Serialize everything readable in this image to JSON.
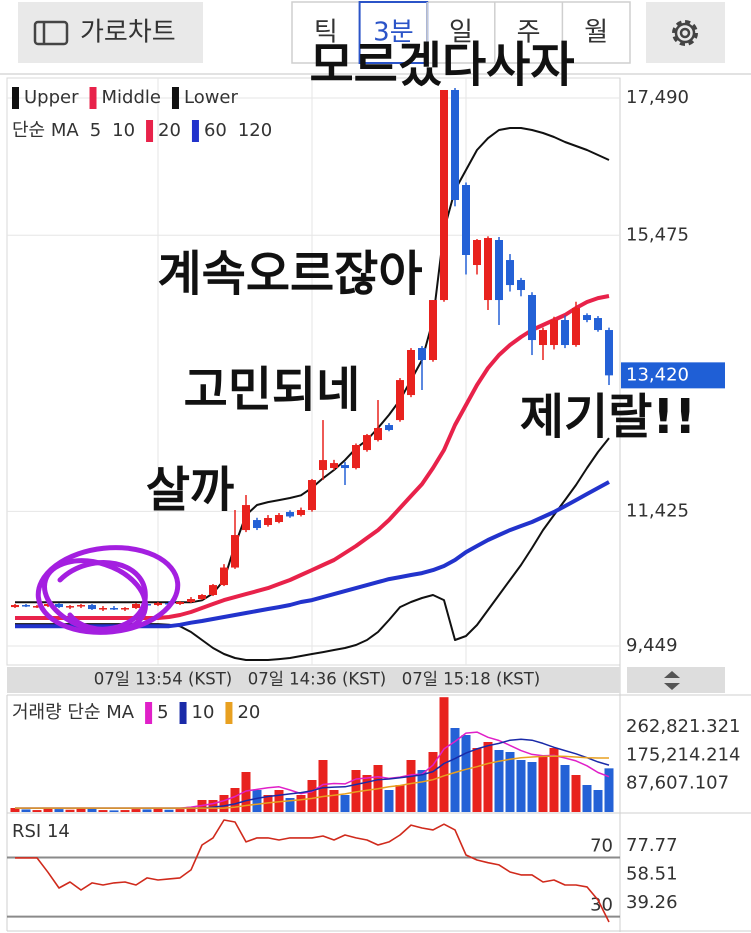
{
  "toolbar": {
    "chart_mode_button": "가로차트",
    "timeframes": [
      "틱",
      "3분",
      "일",
      "주",
      "월"
    ],
    "selected_timeframe": 1
  },
  "chart_data": [
    {
      "type": "candlestick",
      "annotations": [
        "모르겠다사자",
        "계속오르잖아",
        "고민되네",
        "살까",
        "제기랄!!"
      ],
      "categories": [
        null,
        null,
        null,
        null,
        null,
        null,
        null,
        null,
        null,
        null,
        null,
        null,
        null,
        "07일 13:54 (KST)",
        null,
        null,
        null,
        null,
        null,
        null,
        null,
        null,
        null,
        null,
        null,
        null,
        null,
        "07일 14:36 (KST)",
        null,
        null,
        null,
        null,
        null,
        null,
        null,
        null,
        null,
        null,
        null,
        null,
        null,
        "07일 15:18 (KST)",
        null,
        null,
        null,
        null,
        null,
        null,
        null,
        null,
        null,
        null,
        null,
        null,
        null
      ],
      "open": [
        10020,
        10050,
        10035,
        10035,
        10065,
        10020,
        10035,
        10050,
        9991,
        10006,
        9991,
        10006,
        10065,
        10050,
        10080,
        10065,
        10094,
        10138,
        10197,
        10343,
        10600,
        11150,
        11297,
        11224,
        11268,
        11415,
        11371,
        11444,
        12031,
        12060,
        12104,
        12060,
        12324,
        12471,
        12691,
        12764,
        13131,
        13821,
        13645,
        14525,
        17607,
        16213,
        15039,
        14525,
        15406,
        15112,
        14819,
        14599,
        13865,
        13865,
        14232,
        13865,
        14305,
        14261,
        14085
      ],
      "high": [
        10065,
        10065,
        10050,
        10080,
        10080,
        10050,
        10065,
        10065,
        10035,
        10035,
        10020,
        10080,
        10094,
        10094,
        10109,
        10109,
        10167,
        10211,
        10358,
        10650,
        11444,
        11664,
        11330,
        11370,
        11400,
        11440,
        11480,
        11900,
        12764,
        12180,
        12150,
        12420,
        12560,
        13058,
        12720,
        13380,
        13820,
        13850,
        14525,
        17607,
        17636,
        16250,
        15420,
        15460,
        15450,
        15200,
        14850,
        14640,
        14120,
        14280,
        14300,
        14500,
        14330,
        14290,
        14120
      ],
      "low": [
        10006,
        10020,
        10006,
        10020,
        10006,
        9991,
        10006,
        9977,
        9962,
        9977,
        9962,
        9991,
        10035,
        10035,
        10050,
        10050,
        10080,
        10123,
        10182,
        10328,
        10580,
        11120,
        11150,
        11200,
        11250,
        11330,
        11350,
        11420,
        11884,
        12030,
        11811,
        12040,
        12300,
        12450,
        12600,
        12740,
        13100,
        13205,
        13620,
        14500,
        15900,
        14900,
        14900,
        14379,
        14159,
        14650,
        14580,
        13718,
        13645,
        13800,
        13820,
        13840,
        14200,
        14060,
        13278
      ],
      "close": [
        10050,
        10035,
        10035,
        10065,
        10020,
        10035,
        10050,
        9991,
        10006,
        9991,
        10006,
        10065,
        10050,
        10080,
        10065,
        10094,
        10138,
        10197,
        10343,
        10600,
        11077,
        11517,
        11180,
        11327,
        11371,
        11350,
        11444,
        11884,
        12177,
        12133,
        12060,
        12398,
        12544,
        12647,
        12618,
        13351,
        13792,
        13645,
        14525,
        17607,
        15993,
        15186,
        15406,
        15435,
        14525,
        14745,
        14672,
        13938,
        14085,
        14232,
        13865,
        14408,
        14232,
        14085,
        13420
      ],
      "up_color": "#e8221e",
      "down_color": "#2461d6",
      "series": [
        {
          "name": "Upper",
          "color": "#111111",
          "values": [
            10090,
            10090,
            10090,
            10090,
            10090,
            10090,
            10090,
            10090,
            10090,
            10090,
            10090,
            10090,
            10090,
            10090,
            10090,
            10090,
            10090,
            10120,
            10220,
            10417,
            10930,
            11370,
            11517,
            11560,
            11590,
            11620,
            11660,
            11770,
            11910,
            12031,
            12177,
            12350,
            12471,
            12647,
            12840,
            13058,
            13351,
            13645,
            14232,
            15553,
            16140,
            16433,
            16726,
            16900,
            17020,
            17050,
            17050,
            17020,
            16976,
            16917,
            16844,
            16785,
            16726,
            16653,
            16580
          ]
        },
        {
          "name": "Middle",
          "color": "#e8224a",
          "values": [
            9860,
            9860,
            9860,
            9860,
            9860,
            9860,
            9860,
            9860,
            9860,
            9860,
            9860,
            9860,
            9860,
            9860,
            9874,
            9903,
            9947,
            10006,
            10065,
            10123,
            10167,
            10211,
            10255,
            10299,
            10358,
            10417,
            10490,
            10563,
            10637,
            10710,
            10813,
            10916,
            11033,
            11150,
            11297,
            11473,
            11650,
            11825,
            12060,
            12324,
            12691,
            12985,
            13278,
            13528,
            13718,
            13865,
            13982,
            14085,
            14159,
            14232,
            14305,
            14408,
            14496,
            14554,
            14584
          ]
        },
        {
          "name": "Lower",
          "color": "#111111",
          "values": [
            9770,
            9770,
            9770,
            9770,
            9770,
            9770,
            9770,
            9770,
            9770,
            9770,
            9770,
            9770,
            9770,
            9770,
            9760,
            9740,
            9654,
            9537,
            9419,
            9331,
            9272,
            9243,
            9243,
            9243,
            9257,
            9272,
            9302,
            9331,
            9360,
            9390,
            9419,
            9463,
            9537,
            9654,
            9830,
            10020,
            10094,
            10153,
            10197,
            10123,
            9537,
            9596,
            9757,
            9977,
            10197,
            10417,
            10637,
            10886,
            11150,
            11371,
            11590,
            11811,
            12060,
            12295,
            12500
          ]
        }
      ],
      "ma_title": "단순 MA",
      "ma": [
        {
          "period": 5
        },
        {
          "period": 10
        },
        {
          "period": 20,
          "color": "#e8224a"
        },
        {
          "period": 60,
          "color": "#2233cc",
          "values": [
            9740,
            9740,
            9740,
            9740,
            9740,
            9740,
            9740,
            9740,
            9740,
            9740,
            9740,
            9740,
            9740,
            9740,
            9740,
            9760,
            9790,
            9815,
            9845,
            9874,
            9903,
            9933,
            9962,
            9991,
            10020,
            10050,
            10094,
            10123,
            10167,
            10211,
            10255,
            10299,
            10343,
            10387,
            10431,
            10460,
            10490,
            10519,
            10563,
            10622,
            10710,
            10827,
            10916,
            11004,
            11077,
            11150,
            11209,
            11268,
            11341,
            11415,
            11502,
            11590,
            11679,
            11767,
            11855
          ]
        },
        {
          "period": 120
        }
      ],
      "ylim": [
        9170,
        17783
      ],
      "yticks": [
        {
          "value": 17490,
          "label": "17,490"
        },
        {
          "value": 15475,
          "label": "15,475"
        },
        {
          "value": 11425,
          "label": "11,425"
        },
        {
          "value": 9449,
          "label": "9,449"
        }
      ],
      "current_price": {
        "value": 13420,
        "label": "13,420"
      },
      "grid": true
    },
    {
      "type": "bar",
      "title": "거래량 단순 MA",
      "values": [
        12368,
        8000,
        6000,
        10000,
        9000,
        7000,
        12000,
        11000,
        6000,
        5000,
        6000,
        9000,
        8000,
        12000,
        7000,
        9000,
        16000,
        37104,
        37104,
        52564,
        74208,
        123680,
        68024,
        52564,
        68024,
        43288,
        52564,
        98944,
        160784,
        68024,
        52564,
        129864,
        114404,
        145324,
        68024,
        83484,
        160784,
        129864,
        185520,
        355000,
        259728,
        238084,
        197888,
        216440,
        191704,
        185520,
        160784,
        154600,
        176244,
        197888,
        145324,
        114404,
        83484,
        68024,
        135000
      ],
      "ma": [
        {
          "period": 5,
          "color": "#e020c8",
          "values": [
            12000,
            12000,
            12000,
            12000,
            12000,
            12000,
            12000,
            12000,
            12000,
            12000,
            12000,
            12000,
            12000,
            12000,
            12000,
            12000,
            15000,
            20000,
            26000,
            35000,
            48000,
            65000,
            70000,
            75000,
            78000,
            68000,
            57000,
            63000,
            85000,
            88000,
            87000,
            102000,
            105000,
            109000,
            104000,
            108000,
            115000,
            117000,
            145000,
            195000,
            218000,
            244000,
            247000,
            231000,
            221000,
            206000,
            190000,
            178000,
            174000,
            175000,
            167000,
            158000,
            143000,
            122000,
            109000
          ]
        },
        {
          "period": 10,
          "color": "#1a2aa8",
          "values": [
            12000,
            12000,
            12000,
            12000,
            12000,
            12000,
            12000,
            12000,
            12000,
            12000,
            12000,
            12000,
            12000,
            12000,
            12000,
            12000,
            12000,
            12000,
            15000,
            19000,
            25000,
            35000,
            42000,
            48000,
            52000,
            56000,
            60000,
            66000,
            75000,
            77000,
            78000,
            85000,
            92000,
            100000,
            102000,
            106000,
            110000,
            115000,
            125000,
            150000,
            165000,
            182000,
            195000,
            205000,
            212000,
            222000,
            225000,
            222000,
            212000,
            200000,
            190000,
            180000,
            168000,
            155000,
            145000
          ]
        },
        {
          "period": 20,
          "color": "#e8a020",
          "values": [
            12000,
            12000,
            12000,
            12000,
            12000,
            12000,
            12000,
            12000,
            12000,
            12000,
            12000,
            12000,
            12000,
            12000,
            12000,
            12000,
            12000,
            12000,
            12000,
            12000,
            15000,
            20000,
            24000,
            28000,
            32000,
            35000,
            38000,
            42000,
            48000,
            52000,
            56000,
            62000,
            67000,
            72000,
            78000,
            82000,
            88000,
            93000,
            100000,
            112000,
            122000,
            132000,
            140000,
            150000,
            157000,
            163000,
            168000,
            170000,
            172000,
            173000,
            172000,
            170000,
            168000,
            167000,
            167000
          ]
        }
      ],
      "ylim": [
        0,
        355600
      ],
      "yticks": [
        {
          "value": 262821.321,
          "label": "262,821.321"
        },
        {
          "value": 175214.214,
          "label": "175,214.214"
        },
        {
          "value": 87607.107,
          "label": "87,607.107"
        }
      ]
    },
    {
      "type": "line",
      "title": "RSI 14",
      "color": "#d02a1c",
      "values": [
        69.7,
        69.7,
        69.7,
        60.0,
        49.4,
        53.4,
        48.0,
        52.8,
        51.4,
        52.8,
        53.4,
        51.4,
        56.2,
        54.8,
        55.5,
        56.2,
        61.6,
        78.4,
        83.2,
        95.3,
        94.0,
        80.5,
        83.2,
        83.2,
        81.8,
        83.2,
        83.2,
        83.2,
        84.5,
        81.8,
        85.2,
        83.2,
        81.8,
        78.4,
        80.5,
        85.2,
        91.9,
        89.9,
        88.6,
        92.5,
        88.6,
        71.7,
        68.3,
        66.5,
        65.0,
        60.2,
        58.2,
        58.2,
        53.4,
        54.8,
        51.4,
        51.4,
        50.1,
        41.3,
        26.4
      ],
      "hlines": [
        70,
        30
      ],
      "ylim": [
        21.0,
        98.7
      ],
      "yticks": [
        77.77,
        58.51,
        39.26
      ]
    }
  ]
}
